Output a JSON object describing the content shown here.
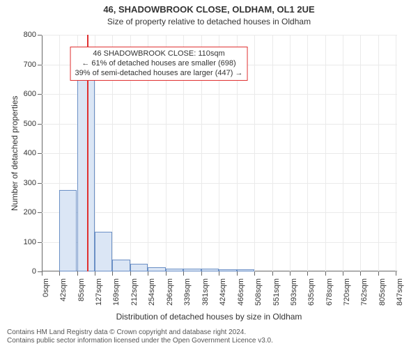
{
  "title_line1": "46, SHADOWBROOK CLOSE, OLDHAM, OL1 2UE",
  "title_line2": "Size of property relative to detached houses in Oldham",
  "title_fontsize": 13,
  "subtitle_fontsize": 12,
  "ylabel": "Number of detached properties",
  "xlabel": "Distribution of detached houses by size in Oldham",
  "axis_label_fontsize": 12,
  "tick_fontsize": 11,
  "chart": {
    "type": "histogram",
    "background_color": "#ffffff",
    "grid_color": "#eaeaea",
    "axis_color": "#666666",
    "bar_fill": "#dbe6f5",
    "bar_border": "#6a8fc5",
    "marker_color": "#e03030",
    "marker_x": 110,
    "xlim": [
      0,
      850
    ],
    "ylim": [
      0,
      800
    ],
    "ytick_step": 100,
    "xtick_labels": [
      "0sqm",
      "42sqm",
      "85sqm",
      "127sqm",
      "169sqm",
      "212sqm",
      "254sqm",
      "296sqm",
      "339sqm",
      "381sqm",
      "424sqm",
      "466sqm",
      "508sqm",
      "551sqm",
      "593sqm",
      "635sqm",
      "678sqm",
      "720sqm",
      "762sqm",
      "805sqm",
      "847sqm"
    ],
    "xtick_values": [
      0,
      42,
      85,
      127,
      169,
      212,
      254,
      296,
      339,
      381,
      424,
      466,
      508,
      551,
      593,
      635,
      678,
      720,
      762,
      805,
      847
    ],
    "bar_width_data": 42,
    "bars": [
      {
        "x": 0,
        "y": 0
      },
      {
        "x": 42,
        "y": 275
      },
      {
        "x": 85,
        "y": 650
      },
      {
        "x": 127,
        "y": 135
      },
      {
        "x": 169,
        "y": 40
      },
      {
        "x": 212,
        "y": 25
      },
      {
        "x": 254,
        "y": 15
      },
      {
        "x": 296,
        "y": 10
      },
      {
        "x": 339,
        "y": 10
      },
      {
        "x": 381,
        "y": 10
      },
      {
        "x": 424,
        "y": 8
      },
      {
        "x": 466,
        "y": 8
      },
      {
        "x": 508,
        "y": 0
      },
      {
        "x": 551,
        "y": 0
      },
      {
        "x": 593,
        "y": 0
      },
      {
        "x": 635,
        "y": 0
      },
      {
        "x": 678,
        "y": 0
      },
      {
        "x": 720,
        "y": 0
      },
      {
        "x": 762,
        "y": 0
      },
      {
        "x": 805,
        "y": 0
      }
    ]
  },
  "annotation": {
    "line1": "46 SHADOWBROOK CLOSE: 110sqm",
    "line2": "← 61% of detached houses are smaller (698)",
    "line3": "39% of semi-detached houses are larger (447) →",
    "border_color": "#e03030",
    "bg_color": "#ffffff",
    "fontsize": 11,
    "x_center_data": 280,
    "y_top_data": 760
  },
  "footer": {
    "line1": "Contains HM Land Registry data © Crown copyright and database right 2024.",
    "line2": "Contains public sector information licensed under the Open Government Licence v3.0.",
    "fontsize": 10,
    "color": "#555555"
  }
}
